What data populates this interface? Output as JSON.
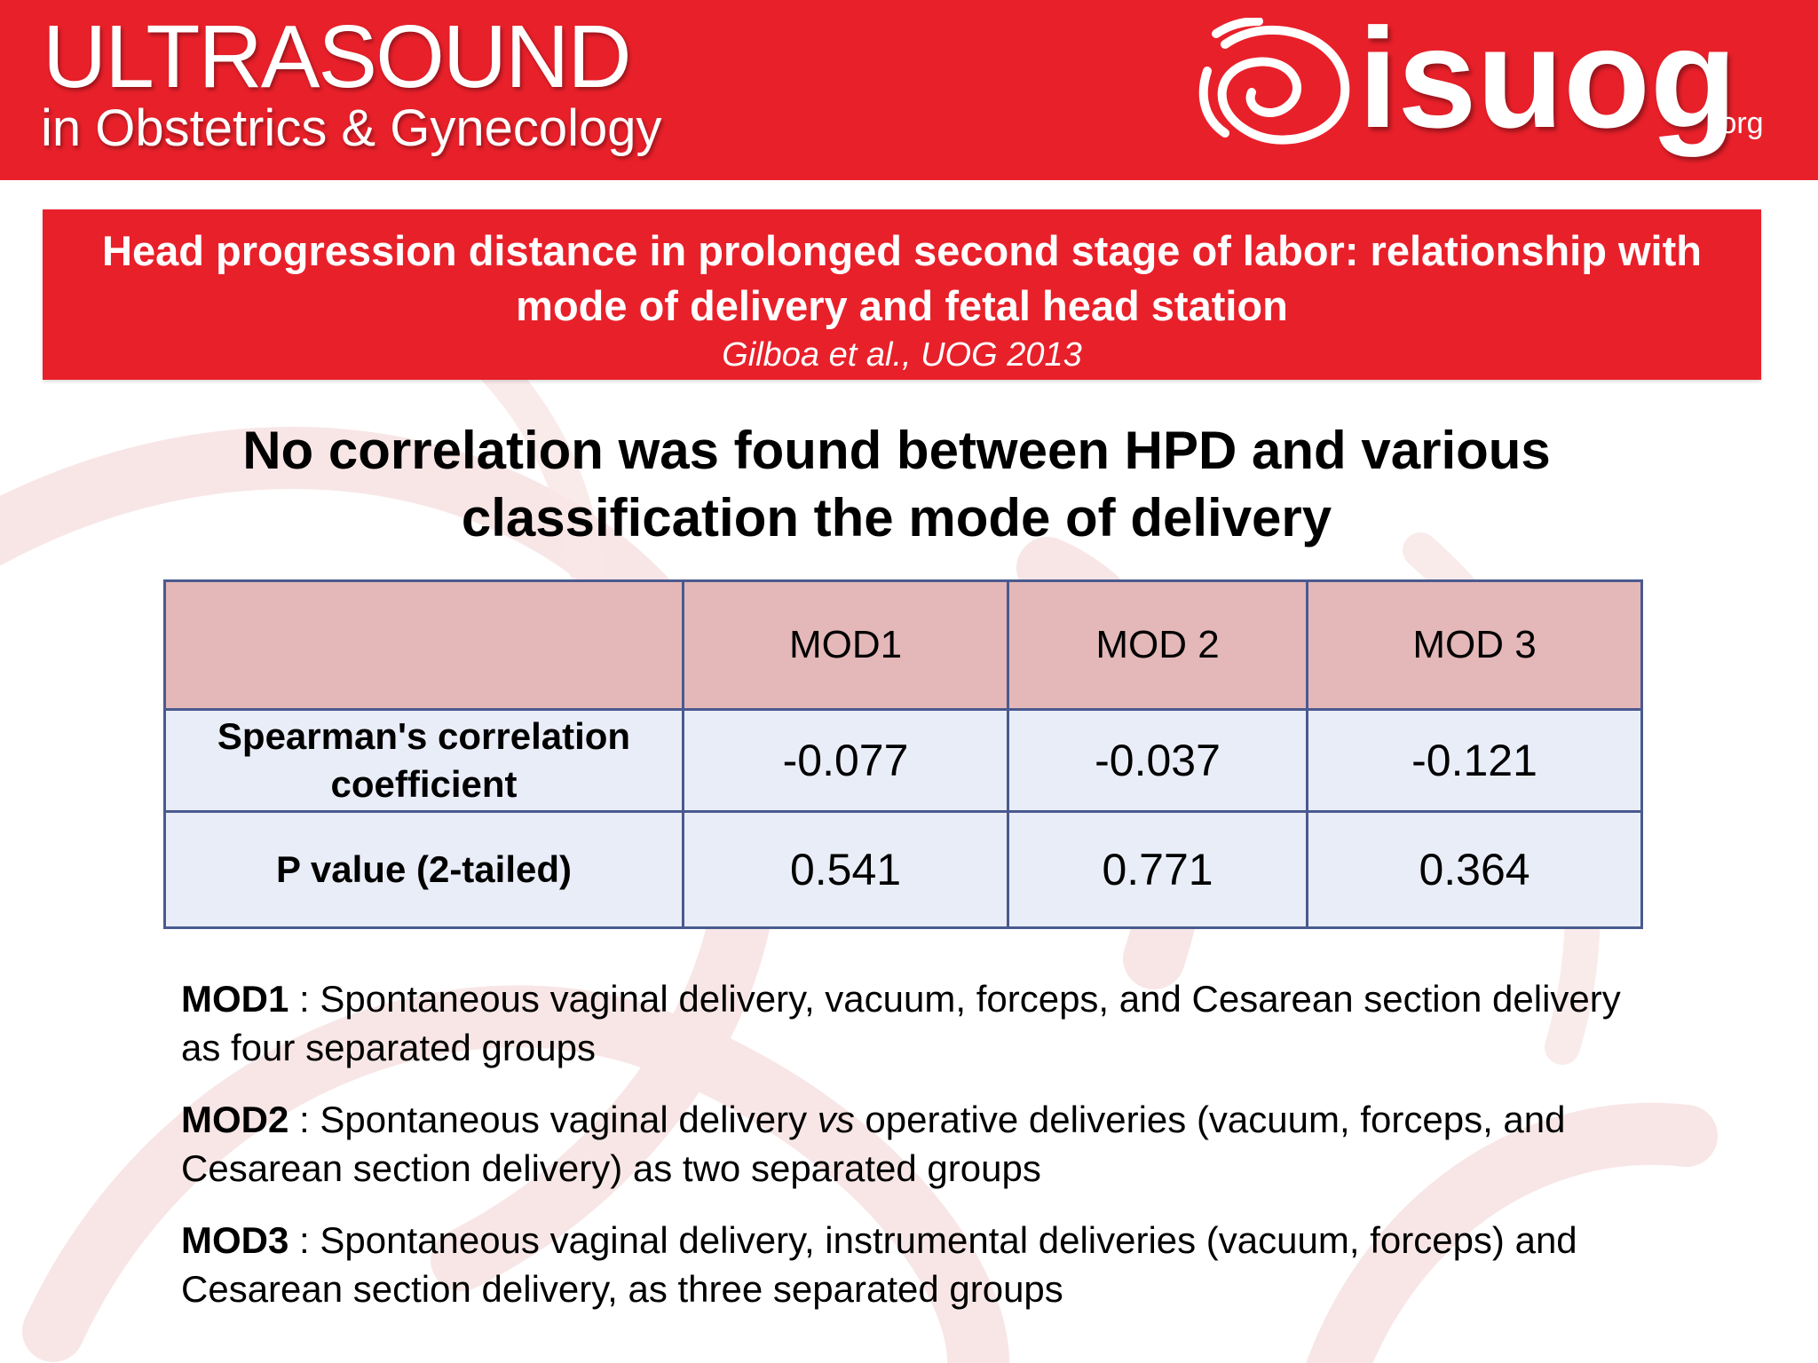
{
  "header": {
    "journal_title": "ULTRASOUND",
    "journal_subtitle": "in Obstetrics & Gynecology",
    "brand": "isuog",
    "brand_suffix": ".org",
    "brand_color": "#e8202a"
  },
  "banner": {
    "title": "Head progression distance in prolonged second stage of labor: relationship with mode of delivery and fetal head station",
    "citation": "Gilboa et al., UOG 2013"
  },
  "headline": "No correlation was found between HPD and various classification the mode of delivery",
  "table": {
    "columns": [
      "",
      "MOD1",
      "MOD 2",
      "MOD 3"
    ],
    "rows": [
      {
        "label": "Spearman's correlation coefficient",
        "values": [
          "-0.077",
          "-0.037",
          "-0.121"
        ]
      },
      {
        "label": "P value (2-tailed)",
        "values": [
          "0.541",
          "0.771",
          "0.364"
        ]
      }
    ],
    "header_color": "#e4b7b8",
    "body_color": "#e9edf7",
    "border_color": "#4a5a8f"
  },
  "definitions": [
    {
      "term": "MOD1",
      "pre": " : Spontaneous vaginal delivery, vacuum, forceps, and Cesarean section delivery as four separated groups",
      "em": "",
      "post": ""
    },
    {
      "term": "MOD2",
      "pre": " : Spontaneous vaginal delivery ",
      "em": "vs",
      "post": " operative deliveries (vacuum, forceps, and Cesarean section delivery) as two separated groups"
    },
    {
      "term": "MOD3",
      "pre": " : Spontaneous vaginal delivery, instrumental deliveries (vacuum, forceps) and Cesarean section delivery, as three separated groups",
      "em": "",
      "post": ""
    }
  ]
}
